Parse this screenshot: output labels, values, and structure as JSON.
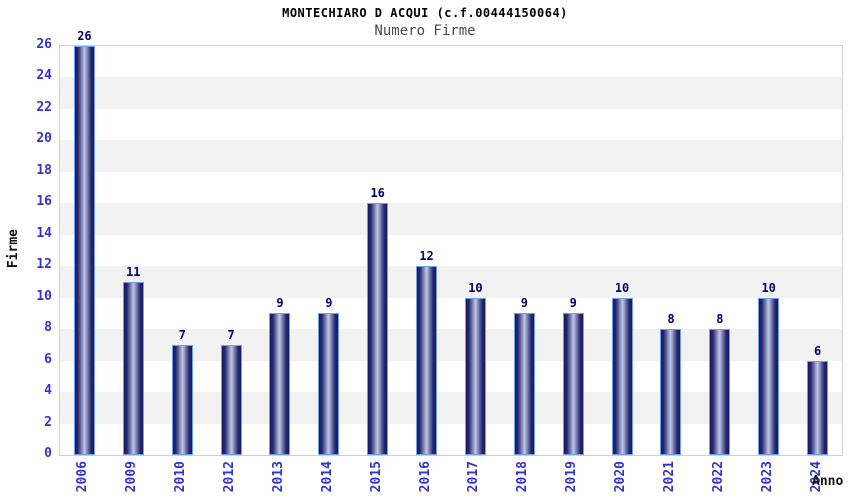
{
  "header": {
    "title": "MONTECHIARO D ACQUI (c.f.00444150064)",
    "subtitle": "Numero Firme"
  },
  "chart_data": {
    "type": "bar",
    "title": "MONTECHIARO D ACQUI (c.f.00444150064)",
    "subtitle": "Numero Firme",
    "xlabel": "Anno",
    "ylabel": "Firme",
    "categories": [
      "2006",
      "2009",
      "2010",
      "2012",
      "2013",
      "2014",
      "2015",
      "2016",
      "2017",
      "2018",
      "2019",
      "2020",
      "2021",
      "2022",
      "2023",
      "2024"
    ],
    "values": [
      26,
      11,
      7,
      7,
      9,
      9,
      16,
      12,
      10,
      9,
      9,
      10,
      8,
      8,
      10,
      6
    ],
    "ylim": [
      0,
      26
    ],
    "ytick_step": 2,
    "grid": "horizontal-alternating-bands",
    "legend_position": "none",
    "colors": {
      "tick_label": "#3333cc",
      "value_label": "#000066",
      "band_gray": "#f2f2f2",
      "plot_border": "#d0d0d0",
      "bar_outline": "#6f9fe8",
      "bar_dark": "#1a1a64",
      "bar_mid": "#23276e",
      "bar_light": "#c2c7e6",
      "title_color": "#000000",
      "subtitle_color": "#4a4a4a",
      "axis_title_color": "#111111"
    }
  }
}
